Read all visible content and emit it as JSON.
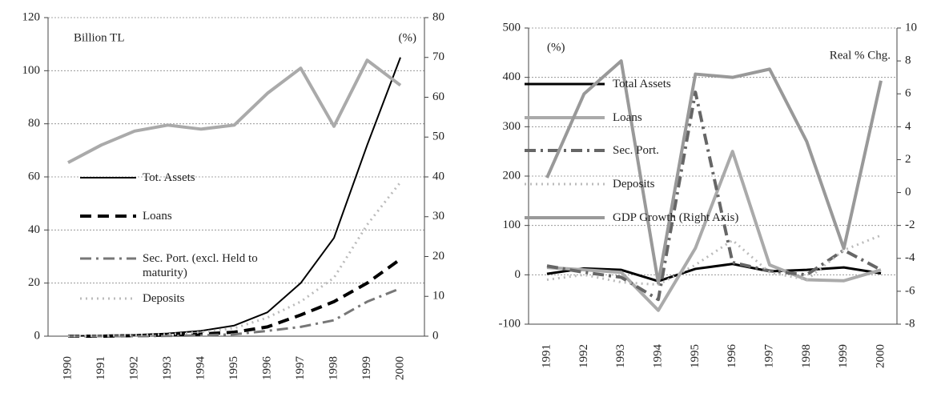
{
  "chart_data": [
    {
      "type": "line",
      "annotations": [
        "Billion TL",
        "(%)"
      ],
      "categories": [
        "1990",
        "1991",
        "1992",
        "1993",
        "1994",
        "1995",
        "1996",
        "1997",
        "1998",
        "1999",
        "2000"
      ],
      "ylim": [
        0,
        120
      ],
      "yticks": [
        0,
        20,
        40,
        60,
        80,
        100,
        120
      ],
      "y2lim": [
        0,
        80
      ],
      "y2ticks": [
        0,
        10,
        20,
        30,
        40,
        50,
        60,
        70,
        80
      ],
      "grid": true,
      "series": [
        {
          "name": "Tot. Assets",
          "color": "#000000",
          "dash": "solid",
          "width": 2,
          "values": [
            0,
            0.3,
            0.5,
            1,
            2,
            4,
            9,
            20,
            37,
            72,
            105
          ]
        },
        {
          "name": "Loans",
          "color": "#000000",
          "dash": "dashed",
          "width": 4,
          "values": [
            0,
            0,
            0.2,
            0.4,
            0.8,
            1.5,
            3.5,
            8,
            13,
            20,
            29
          ]
        },
        {
          "name": "Sec. Port. (excl. Held to maturity)",
          "color": "#777777",
          "dash": "dashdot",
          "width": 3,
          "values": [
            0,
            0,
            0,
            0.1,
            0.3,
            0.7,
            2,
            3.5,
            6,
            13,
            18
          ]
        },
        {
          "name": "Deposits",
          "color": "#bbbbbb",
          "dash": "dotted",
          "width": 3,
          "values": [
            0,
            0.2,
            0.4,
            0.7,
            1.5,
            3,
            7,
            13,
            22,
            42,
            58
          ]
        },
        {
          "color": "#aaaaaa",
          "dash": "solid",
          "width": 4,
          "axis": "y2",
          "values": [
            43.6,
            48,
            51.5,
            53,
            52,
            53,
            61,
            67.3,
            52.7,
            69.3,
            63
          ]
        }
      ]
    },
    {
      "type": "line",
      "annotations": [
        "(%)",
        "Real % Chg."
      ],
      "categories": [
        "1991",
        "1992",
        "1993",
        "1994",
        "1995",
        "1996",
        "1997",
        "1998",
        "1999",
        "2000"
      ],
      "ylim": [
        -100,
        500
      ],
      "yticks": [
        -100,
        0,
        100,
        200,
        300,
        400,
        500
      ],
      "y2lim": [
        -8,
        10
      ],
      "y2ticks": [
        -8,
        -6,
        -4,
        -2,
        0,
        2,
        4,
        6,
        8,
        10
      ],
      "grid": true,
      "series": [
        {
          "name": "Total Assets",
          "color": "#000000",
          "dash": "solid",
          "width": 3,
          "values": [
            2,
            13,
            10,
            -13,
            12,
            22,
            7,
            10,
            15,
            3
          ]
        },
        {
          "name": "Loans",
          "color": "#aaaaaa",
          "dash": "solid",
          "width": 4,
          "values": [
            15,
            10,
            5,
            -72,
            54,
            250,
            20,
            -10,
            -12,
            10
          ]
        },
        {
          "name": "Sec. Port.",
          "color": "#666666",
          "dash": "dashdot",
          "width": 4,
          "values": [
            18,
            5,
            -5,
            -50,
            370,
            25,
            8,
            0,
            50,
            10
          ]
        },
        {
          "name": "Deposits",
          "color": "#bbbbbb",
          "dash": "dotted",
          "width": 3,
          "values": [
            -10,
            0,
            -15,
            -20,
            20,
            70,
            5,
            -10,
            50,
            80
          ]
        },
        {
          "name": "GDP Growth (Right Axis)",
          "color": "#999999",
          "dash": "solid",
          "width": 4,
          "axis": "y2",
          "values": [
            0.9,
            6,
            8,
            -5.5,
            7.2,
            7,
            7.5,
            3.1,
            -3.4,
            6.8
          ]
        }
      ]
    }
  ]
}
